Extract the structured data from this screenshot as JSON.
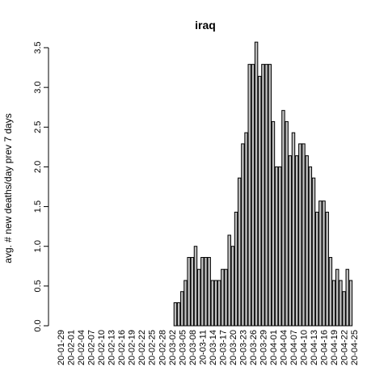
{
  "chart_data": {
    "type": "bar",
    "title": "iraq",
    "xlabel": "",
    "ylabel": "avg. # new deaths/day prev  7  days",
    "ylim": [
      0,
      3.5
    ],
    "yticks": [
      0.0,
      0.5,
      1.0,
      1.5,
      2.0,
      2.5,
      3.0,
      3.5
    ],
    "ytick_labels": [
      "0.0",
      "0.5",
      "1.0",
      "1.5",
      "2.0",
      "2.5",
      "3.0",
      "3.5"
    ],
    "bar_color": "#bebebe",
    "x_tick_labels": [
      "20-01-29",
      "20-02-01",
      "20-02-04",
      "20-02-07",
      "20-02-10",
      "20-02-13",
      "20-02-16",
      "20-02-19",
      "20-02-22",
      "20-02-25",
      "20-02-28",
      "20-03-02",
      "20-03-05",
      "20-03-08",
      "20-03-11",
      "20-03-14",
      "20-03-17",
      "20-03-20",
      "20-03-23",
      "20-03-26",
      "20-03-29",
      "20-04-01",
      "20-04-04",
      "20-04-07",
      "20-04-10",
      "20-04-13",
      "20-04-16",
      "20-04-19",
      "20-04-22",
      "20-04-25"
    ],
    "x_tick_every": 3,
    "values": [
      0,
      0,
      0,
      0,
      0,
      0,
      0,
      0,
      0,
      0,
      0,
      0,
      0,
      0,
      0,
      0,
      0,
      0,
      0,
      0,
      0,
      0,
      0,
      0,
      0,
      0,
      0,
      0,
      0,
      0,
      0,
      0,
      0,
      0,
      0.29,
      0.29,
      0.43,
      0.57,
      0.86,
      0.86,
      1.0,
      0.71,
      0.86,
      0.86,
      0.86,
      0.57,
      0.57,
      0.57,
      0.71,
      0.71,
      1.14,
      1.0,
      1.43,
      1.86,
      2.29,
      2.43,
      3.29,
      3.29,
      3.57,
      3.14,
      3.29,
      3.29,
      3.29,
      2.57,
      2.0,
      2.0,
      2.71,
      2.57,
      2.14,
      2.43,
      2.14,
      2.29,
      2.29,
      2.14,
      2.0,
      1.86,
      1.43,
      1.57,
      1.57,
      1.43,
      0.86,
      0.57,
      0.71,
      0.57,
      0.43,
      0.71,
      0.57
    ]
  }
}
